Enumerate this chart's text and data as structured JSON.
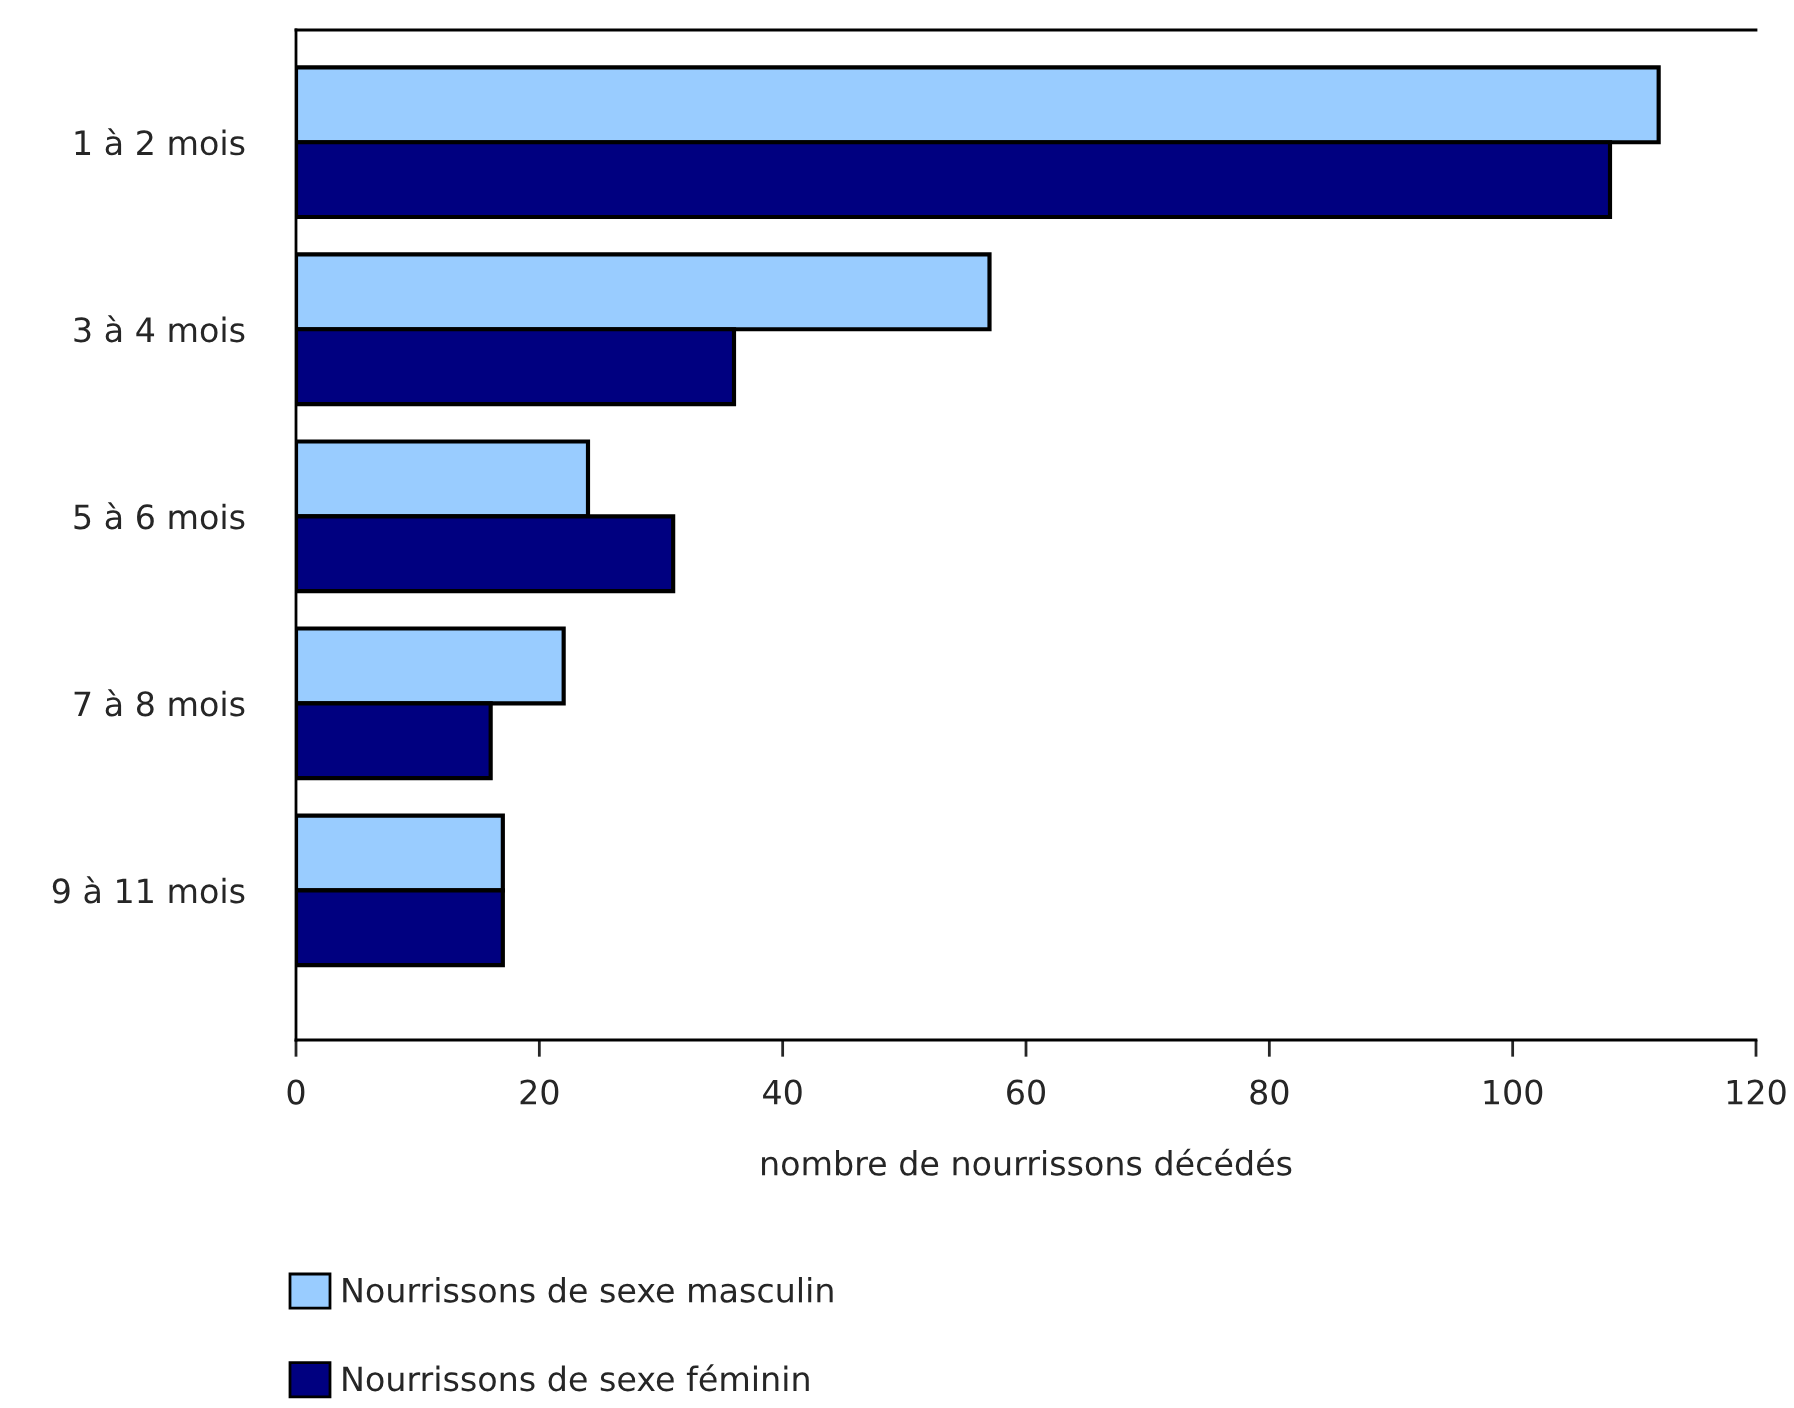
{
  "chart_data": {
    "type": "bar",
    "orientation": "horizontal",
    "xlabel": "nombre de nourrissons décédés",
    "categories": [
      "1 à 2 mois",
      "3 à 4 mois",
      "5 à 6 mois",
      "7 à 8 mois",
      "9 à 11 mois"
    ],
    "series": [
      {
        "name": "Nourrissons de sexe masculin",
        "color": "#99ccff",
        "values": [
          112,
          57,
          24,
          22,
          17
        ]
      },
      {
        "name": "Nourrissons de sexe féminin",
        "color": "#000080",
        "values": [
          108,
          36,
          31,
          16,
          17
        ]
      }
    ],
    "xlim": [
      0,
      120
    ],
    "xticks": [
      0,
      20,
      40,
      60,
      80,
      100,
      120
    ],
    "grid": false,
    "legend": "bottom left"
  }
}
